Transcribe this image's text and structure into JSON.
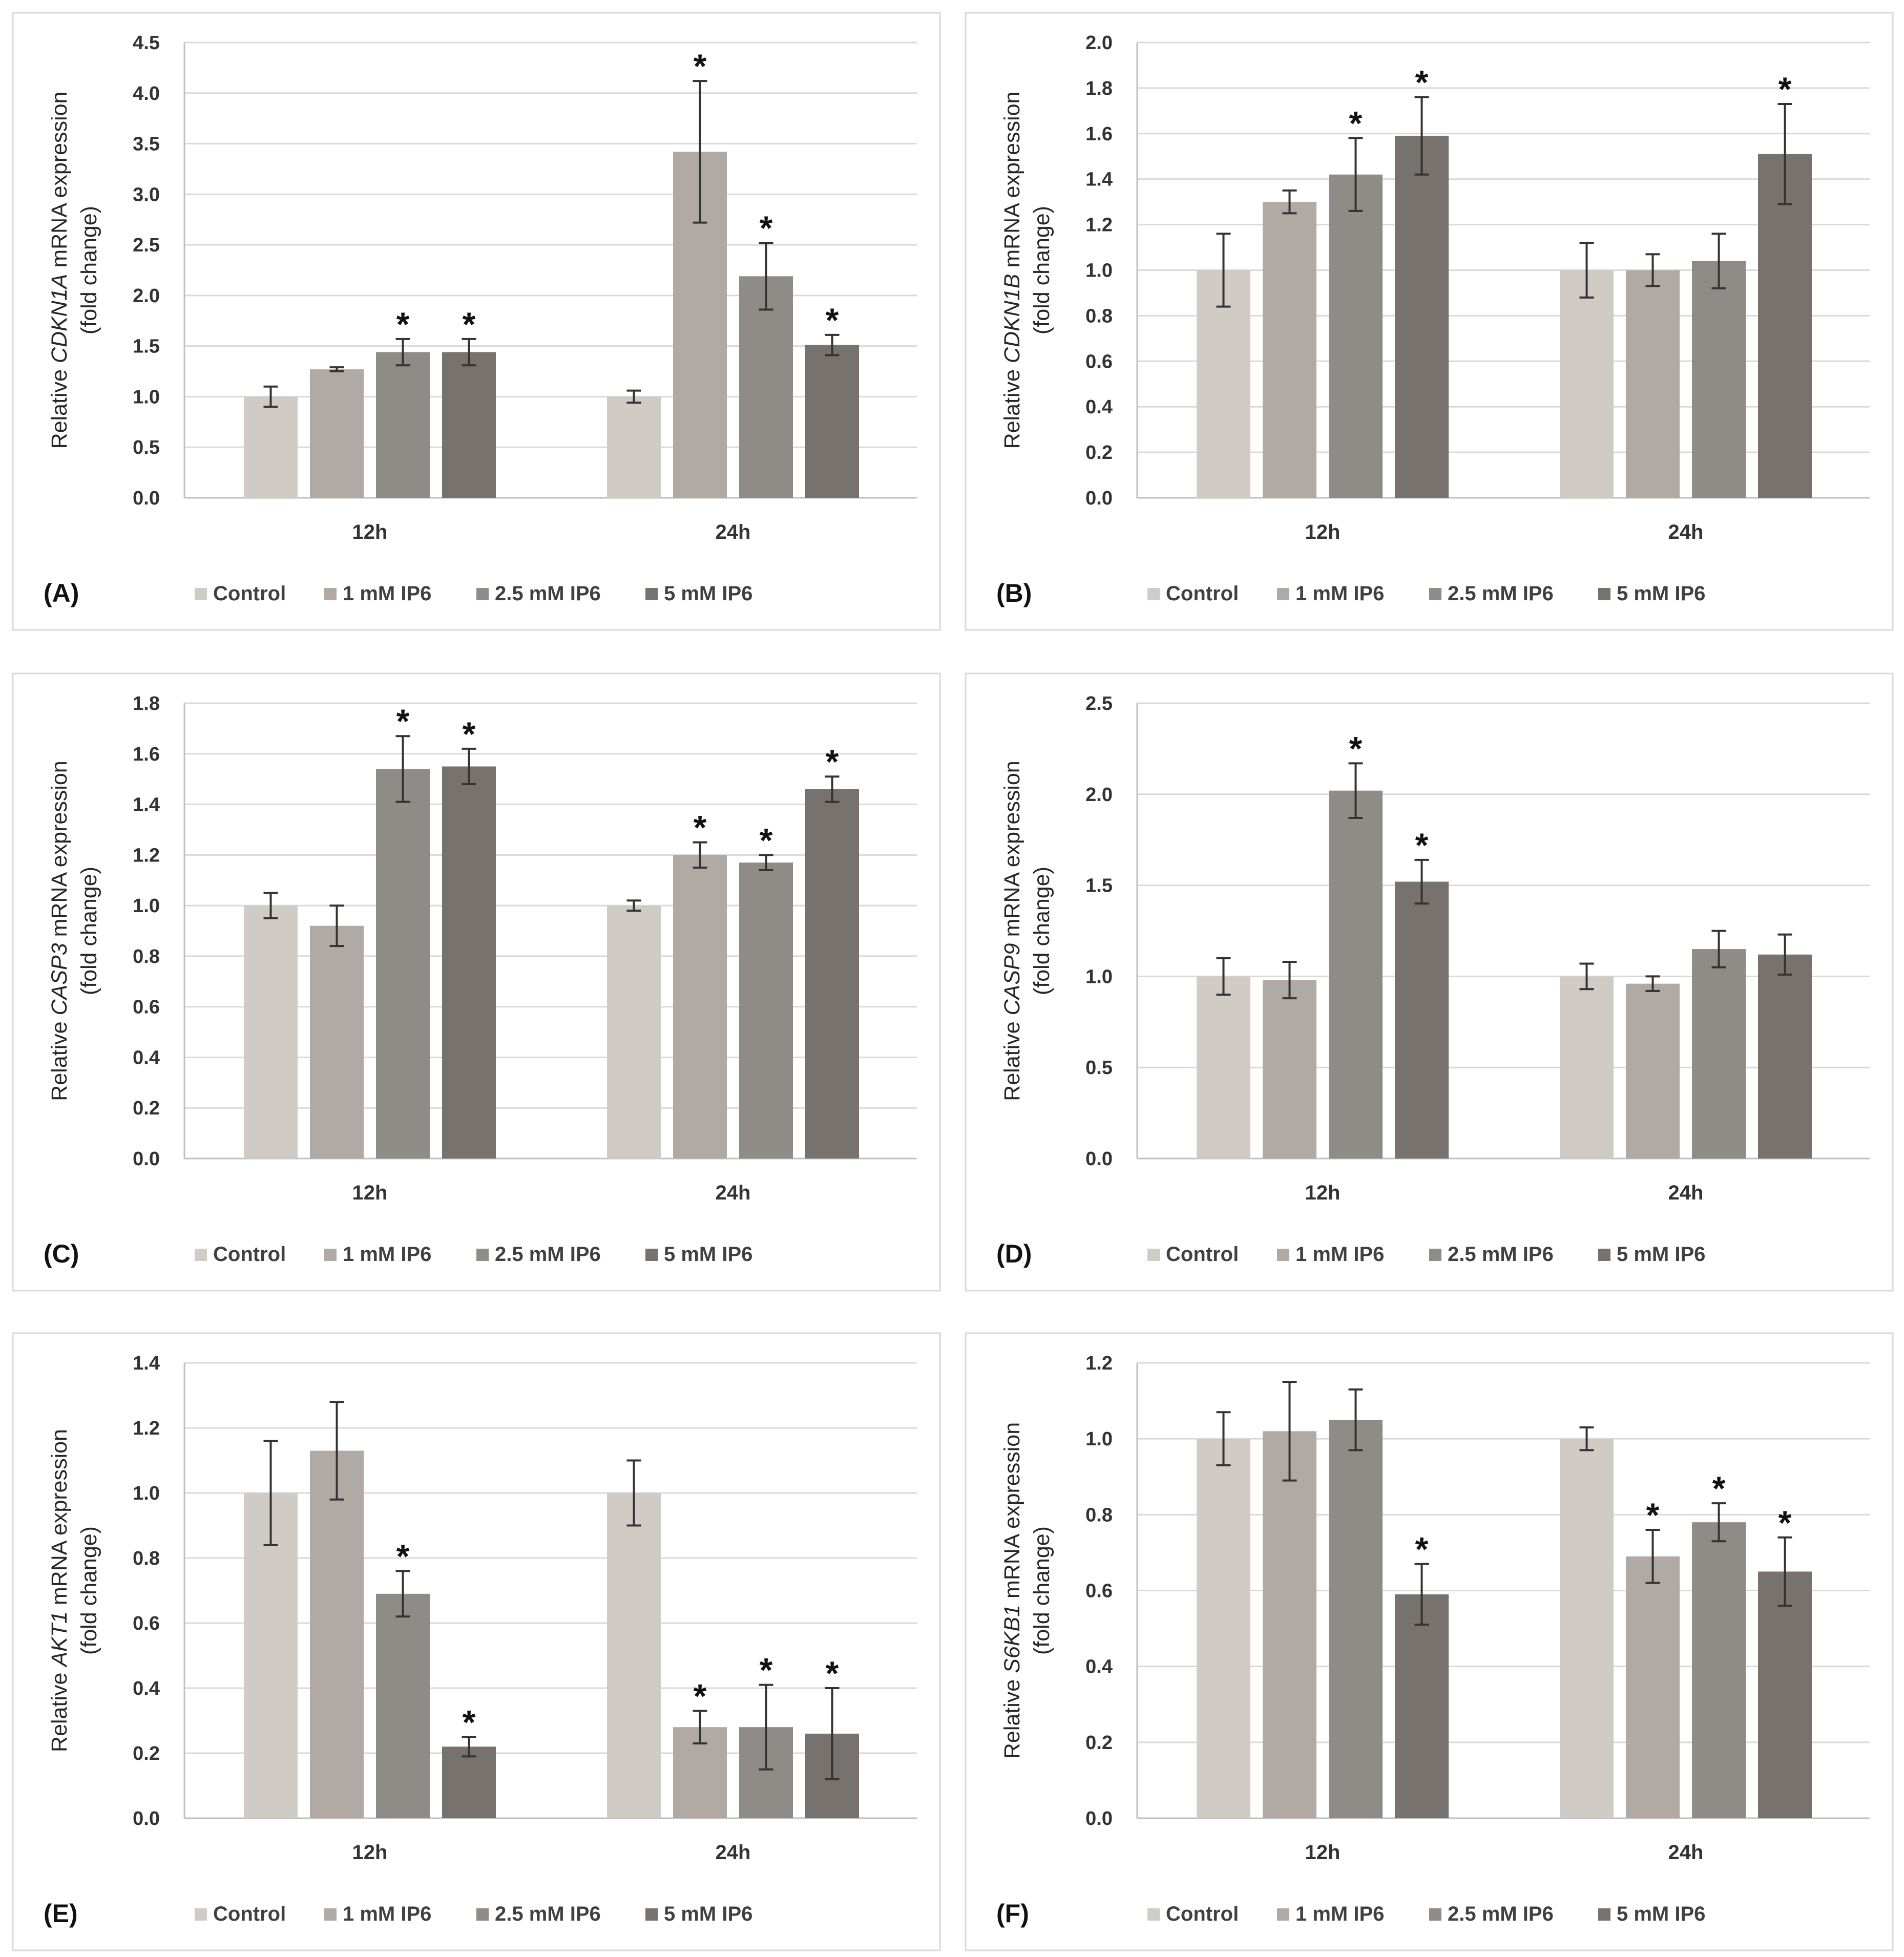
{
  "figure": {
    "series_names": [
      "Control",
      "1 mM IP6",
      "2.5 mM IP6",
      "5 mM IP6"
    ],
    "series_colors": [
      "#d1cbc6",
      "#b1aaa4",
      "#8f8b86",
      "#77726d"
    ],
    "categories": [
      "12h",
      "24h"
    ],
    "y_title_prefix": "Relative ",
    "y_title_suffix": " mRNA expression",
    "y_title_line2": "(fold change)",
    "significance_marker": "*"
  },
  "chart_data": [
    {
      "type": "bar",
      "panel_label": "(A)",
      "gene": "CDKN1A",
      "categories": [
        "12h",
        "24h"
      ],
      "ylim": [
        0,
        4.5
      ],
      "ystep": 0.5,
      "tick_decimals": 1,
      "ytick_labels": [
        "0.0",
        "0.5",
        "1.0",
        "1.5",
        "2.0",
        "2.5",
        "3.0",
        "3.5",
        "4.0",
        "4.5"
      ],
      "series": [
        {
          "name": "Control",
          "values": [
            1.0,
            1.0
          ],
          "errors": [
            0.1,
            0.06
          ],
          "significant": [
            false,
            false
          ]
        },
        {
          "name": "1 mM IP6",
          "values": [
            1.27,
            3.42
          ],
          "errors": [
            0.02,
            0.7
          ],
          "significant": [
            false,
            true
          ]
        },
        {
          "name": "2.5 mM IP6",
          "values": [
            1.44,
            2.19
          ],
          "errors": [
            0.13,
            0.33
          ],
          "significant": [
            true,
            true
          ]
        },
        {
          "name": "5 mM IP6",
          "values": [
            1.44,
            1.51
          ],
          "errors": [
            0.13,
            0.1
          ],
          "significant": [
            true,
            true
          ]
        }
      ]
    },
    {
      "type": "bar",
      "panel_label": "(B)",
      "gene": "CDKN1B",
      "categories": [
        "12h",
        "24h"
      ],
      "ylim": [
        0,
        2.0
      ],
      "ystep": 0.2,
      "tick_decimals": 1,
      "ytick_labels": [
        "0.0",
        "0.2",
        "0.4",
        "0.6",
        "0.8",
        "1.0",
        "1.2",
        "1.4",
        "1.6",
        "1.8",
        "2.0"
      ],
      "series": [
        {
          "name": "Control",
          "values": [
            1.0,
            1.0
          ],
          "errors": [
            0.16,
            0.12
          ],
          "significant": [
            false,
            false
          ]
        },
        {
          "name": "1 mM IP6",
          "values": [
            1.3,
            1.0
          ],
          "errors": [
            0.05,
            0.07
          ],
          "significant": [
            false,
            false
          ]
        },
        {
          "name": "2.5 mM IP6",
          "values": [
            1.42,
            1.04
          ],
          "errors": [
            0.16,
            0.12
          ],
          "significant": [
            true,
            false
          ]
        },
        {
          "name": "5 mM IP6",
          "values": [
            1.59,
            1.51
          ],
          "errors": [
            0.17,
            0.22
          ],
          "significant": [
            true,
            true
          ]
        }
      ]
    },
    {
      "type": "bar",
      "panel_label": "(C)",
      "gene": "CASP3",
      "categories": [
        "12h",
        "24h"
      ],
      "ylim": [
        0,
        1.8
      ],
      "ystep": 0.2,
      "tick_decimals": 1,
      "ytick_labels": [
        "0.0",
        "0.2",
        "0.4",
        "0.6",
        "0.8",
        "1.0",
        "1.2",
        "1.4",
        "1.6",
        "1.8"
      ],
      "series": [
        {
          "name": "Control",
          "values": [
            1.0,
            1.0
          ],
          "errors": [
            0.05,
            0.02
          ],
          "significant": [
            false,
            false
          ]
        },
        {
          "name": "1 mM IP6",
          "values": [
            0.92,
            1.2
          ],
          "errors": [
            0.08,
            0.05
          ],
          "significant": [
            false,
            true
          ]
        },
        {
          "name": "2.5 mM IP6",
          "values": [
            1.54,
            1.17
          ],
          "errors": [
            0.13,
            0.03
          ],
          "significant": [
            true,
            true
          ]
        },
        {
          "name": "5 mM IP6",
          "values": [
            1.55,
            1.46
          ],
          "errors": [
            0.07,
            0.05
          ],
          "significant": [
            true,
            true
          ]
        }
      ]
    },
    {
      "type": "bar",
      "panel_label": "(D)",
      "gene": "CASP9",
      "categories": [
        "12h",
        "24h"
      ],
      "ylim": [
        0,
        2.5
      ],
      "ystep": 0.5,
      "tick_decimals": 1,
      "ytick_labels": [
        "0.0",
        "0.5",
        "1.0",
        "1.5",
        "2.0",
        "2.5"
      ],
      "series": [
        {
          "name": "Control",
          "values": [
            1.0,
            1.0
          ],
          "errors": [
            0.1,
            0.07
          ],
          "significant": [
            false,
            false
          ]
        },
        {
          "name": "1 mM IP6",
          "values": [
            0.98,
            0.96
          ],
          "errors": [
            0.1,
            0.04
          ],
          "significant": [
            false,
            false
          ]
        },
        {
          "name": "2.5 mM IP6",
          "values": [
            2.02,
            1.15
          ],
          "errors": [
            0.15,
            0.1
          ],
          "significant": [
            true,
            false
          ]
        },
        {
          "name": "5 mM IP6",
          "values": [
            1.52,
            1.12
          ],
          "errors": [
            0.12,
            0.11
          ],
          "significant": [
            true,
            false
          ]
        }
      ]
    },
    {
      "type": "bar",
      "panel_label": "(E)",
      "gene": "AKT1",
      "categories": [
        "12h",
        "24h"
      ],
      "ylim": [
        0,
        1.4
      ],
      "ystep": 0.2,
      "tick_decimals": 1,
      "ytick_labels": [
        "0.0",
        "0.2",
        "0.4",
        "0.6",
        "0.8",
        "1.0",
        "1.2",
        "1.4"
      ],
      "series": [
        {
          "name": "Control",
          "values": [
            1.0,
            1.0
          ],
          "errors": [
            0.16,
            0.1
          ],
          "significant": [
            false,
            false
          ]
        },
        {
          "name": "1 mM IP6",
          "values": [
            1.13,
            0.28
          ],
          "errors": [
            0.15,
            0.05
          ],
          "significant": [
            false,
            true
          ]
        },
        {
          "name": "2.5 mM IP6",
          "values": [
            0.69,
            0.28
          ],
          "errors": [
            0.07,
            0.13
          ],
          "significant": [
            true,
            true
          ]
        },
        {
          "name": "5 mM IP6",
          "values": [
            0.22,
            0.26
          ],
          "errors": [
            0.03,
            0.14
          ],
          "significant": [
            true,
            true
          ]
        }
      ]
    },
    {
      "type": "bar",
      "panel_label": "(F)",
      "gene": "S6KB1",
      "categories": [
        "12h",
        "24h"
      ],
      "ylim": [
        0,
        1.2
      ],
      "ystep": 0.2,
      "tick_decimals": 1,
      "ytick_labels": [
        "0.0",
        "0.2",
        "0.4",
        "0.6",
        "0.8",
        "1.0",
        "1.2"
      ],
      "series": [
        {
          "name": "Control",
          "values": [
            1.0,
            1.0
          ],
          "errors": [
            0.07,
            0.03
          ],
          "significant": [
            false,
            false
          ]
        },
        {
          "name": "1 mM IP6",
          "values": [
            1.02,
            0.69
          ],
          "errors": [
            0.13,
            0.07
          ],
          "significant": [
            false,
            true
          ]
        },
        {
          "name": "2.5 mM IP6",
          "values": [
            1.05,
            0.78
          ],
          "errors": [
            0.08,
            0.05
          ],
          "significant": [
            false,
            true
          ]
        },
        {
          "name": "5 mM IP6",
          "values": [
            0.59,
            0.65
          ],
          "errors": [
            0.08,
            0.09
          ],
          "significant": [
            true,
            true
          ]
        }
      ]
    }
  ]
}
